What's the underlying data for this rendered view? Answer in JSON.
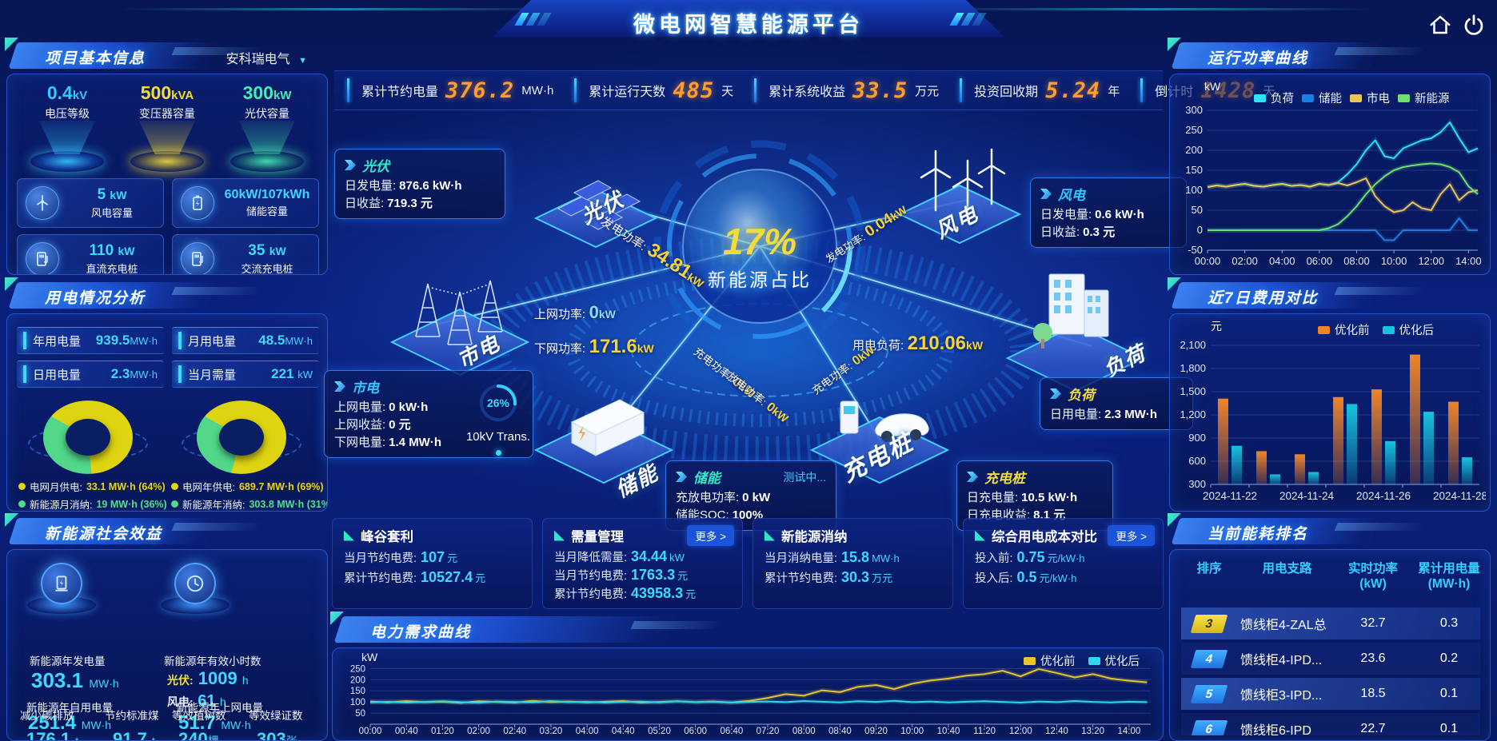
{
  "header": {
    "title": "微电网智慧能源平台"
  },
  "colors": {
    "background": "#0a2180",
    "accent_cyan": "#3fd8ff",
    "accent_yellow": "#f5d33c",
    "number_orange": "#ff9e2e",
    "panel_border": "#2a52c8"
  },
  "topbar": [
    {
      "label": "累计节约电量",
      "value": "376.2",
      "unit": "MW·h"
    },
    {
      "label": "累计运行天数",
      "value": "485",
      "unit": "天"
    },
    {
      "label": "累计系统收益",
      "value": "33.5",
      "unit": "万元"
    },
    {
      "label": "投资回收期",
      "value": "5.24",
      "unit": "年"
    },
    {
      "label": "倒计时",
      "value": "1428",
      "unit": "天"
    }
  ],
  "project": {
    "title": "项目基本信息",
    "company": "安科瑞电气",
    "discs": [
      {
        "value": "0.4",
        "unit": "kV",
        "label": "电压等级"
      },
      {
        "value": "500",
        "unit": "kVA",
        "label": "变压器容量"
      },
      {
        "value": "300",
        "unit": "kW",
        "label": "光伏容量"
      }
    ],
    "cards": [
      {
        "value": "5",
        "unit": "kW",
        "label": "风电容量",
        "icon": "wind-turbine-icon"
      },
      {
        "value": "60kW/107kWh",
        "unit": "",
        "label": "储能容量",
        "icon": "battery-icon"
      },
      {
        "value": "110",
        "unit": "kW",
        "label": "直流充电桩",
        "icon": "dc-charging-pile-icon"
      },
      {
        "value": "35",
        "unit": "kW",
        "label": "交流充电桩",
        "icon": "ac-charging-pile-icon"
      }
    ]
  },
  "usage": {
    "title": "用电情况分析",
    "stats": [
      {
        "label": "年用电量",
        "value": "939.5",
        "unit": "MW·h"
      },
      {
        "label": "月用电量",
        "value": "48.5",
        "unit": "MW·h"
      },
      {
        "label": "日用电量",
        "value": "2.3",
        "unit": "MW·h"
      },
      {
        "label": "当月需量",
        "value": "221",
        "unit": "kW"
      }
    ],
    "month_legend": [
      {
        "label": "电网月供电:",
        "value": "33.1 MW·h (64%)"
      },
      {
        "label": "新能源月消纳:",
        "value": "19 MW·h (36%)"
      }
    ],
    "year_legend": [
      {
        "label": "电网年供电:",
        "value": "689.7 MW·h (69%)"
      },
      {
        "label": "新能源年消纳:",
        "value": "303.8 MW·h (31%)"
      }
    ]
  },
  "benefit": {
    "title": "新能源社会效益",
    "gen": {
      "label": "新能源年发电量",
      "value": "303.1",
      "unit": "MW·h"
    },
    "hours": {
      "label": "新能源年有效小时数",
      "pv_label": "光伏:",
      "pv_value": "1009",
      "pv_unit": "h",
      "wind_label": "风电:",
      "wind_value": "61",
      "wind_unit": "h"
    },
    "self": {
      "label": "新能源年自用电量",
      "value": "251.4",
      "unit": "MW·h"
    },
    "carbon": {
      "label": "减少碳排放",
      "value": "176.1",
      "unit": "t"
    },
    "coal": {
      "label": "节约标准煤",
      "value": "91.7",
      "unit": "t"
    },
    "ongrid": {
      "label": "新能源年上网电量",
      "value": "51.7",
      "unit": "MW·h"
    },
    "trees": {
      "label": "等效植树数",
      "value": "240",
      "unit": "棵"
    },
    "cert": {
      "label": "等效绿证数",
      "value": "303",
      "unit": "张"
    }
  },
  "diagram": {
    "percent": "17%",
    "percent_label": "新能源占比",
    "nodes": {
      "pv": "光伏",
      "wind": "风电",
      "grid": "市电",
      "load": "负荷",
      "storage": "储能",
      "charger": "充电桩"
    },
    "transformer": {
      "percent": "26%",
      "label": "10kV Trans."
    },
    "flows": {
      "pv": {
        "label": "发电功率:",
        "value": "34.81",
        "unit": "kW"
      },
      "wind": {
        "label": "发电功率:",
        "value": "0.04",
        "unit": "kW"
      },
      "up": {
        "label": "上网功率:",
        "value": "0",
        "unit": "kW"
      },
      "down": {
        "label": "下网功率:",
        "value": "171.6",
        "unit": "kW"
      },
      "load": {
        "label": "用电负荷:",
        "value": "210.06",
        "unit": "kW"
      },
      "charge": {
        "label": "充电功率:",
        "value": "0",
        "unit": "kW"
      },
      "discharge": {
        "label": "放电功率:",
        "value": "0",
        "unit": "kW"
      },
      "pile": {
        "label": "充电功率:",
        "value": "0",
        "unit": "kW"
      }
    },
    "cards": {
      "pv": {
        "title": "光伏",
        "rows": [
          {
            "label": "日发电量:",
            "value": "876.6 kW·h"
          },
          {
            "label": "日收益:",
            "value": "719.3 元"
          }
        ]
      },
      "wind": {
        "title": "风电",
        "rows": [
          {
            "label": "日发电量:",
            "value": "0.6 kW·h"
          },
          {
            "label": "日收益:",
            "value": "0.3 元"
          }
        ]
      },
      "grid": {
        "title": "市电",
        "rows": [
          {
            "label": "上网电量:",
            "value": "0 kW·h"
          },
          {
            "label": "上网收益:",
            "value": "0 元"
          },
          {
            "label": "下网电量:",
            "value": "1.4 MW·h"
          }
        ]
      },
      "load": {
        "title": "负荷",
        "rows": [
          {
            "label": "日用电量:",
            "value": "2.3 MW·h"
          }
        ]
      },
      "storage": {
        "title": "储能",
        "badge": "测试中...",
        "rows": [
          {
            "label": "充放电功率:",
            "value": "0 kW"
          },
          {
            "label": "储能SOC:",
            "value": "100%"
          }
        ]
      },
      "charger": {
        "title": "充电桩",
        "rows": [
          {
            "label": "日充电量:",
            "value": "10.5 kW·h"
          },
          {
            "label": "日充电收益:",
            "value": "8.1 元"
          }
        ]
      }
    }
  },
  "bottom_cards": [
    {
      "title": "峰谷套利",
      "rows": [
        {
          "label": "当月节约电费:",
          "value": "107",
          "unit": "元"
        },
        {
          "label": "累计节约电费:",
          "value": "10527.4",
          "unit": "元"
        }
      ]
    },
    {
      "title": "需量管理",
      "more": "更多 >",
      "rows": [
        {
          "label": "当月降低需量:",
          "value": "34.44",
          "unit": "kW"
        },
        {
          "label": "当月节约电费:",
          "value": "1763.3",
          "unit": "元"
        },
        {
          "label": "累计节约电费:",
          "value": "43958.3",
          "unit": "元"
        }
      ]
    },
    {
      "title": "新能源消纳",
      "rows": [
        {
          "label": "当月消纳电量:",
          "value": "15.8",
          "unit": "MW·h"
        },
        {
          "label": "累计节约电费:",
          "value": "30.3",
          "unit": "万元"
        }
      ]
    },
    {
      "title": "综合用电成本对比",
      "more": "更多 >",
      "rows": [
        {
          "label": "投入前:",
          "value": "0.75",
          "unit": "元/kW·h"
        },
        {
          "label": "投入后:",
          "value": "0.5",
          "unit": "元/kW·h"
        }
      ]
    }
  ],
  "power_panel": {
    "title": "运行功率曲线",
    "ylabel": "kW"
  },
  "cost_panel": {
    "title": "近7日费用对比",
    "ylabel": "元"
  },
  "demand_panel": {
    "title": "电力需求曲线",
    "ylabel": "kW"
  },
  "ranking": {
    "title": "当前能耗排名",
    "headers": [
      {
        "line1": "排序",
        "line2": ""
      },
      {
        "line1": "用电支路",
        "line2": ""
      },
      {
        "line1": "实时功率",
        "line2": "(kW)"
      },
      {
        "line1": "累计用电量",
        "line2": "(MW·h)"
      }
    ],
    "rows": [
      {
        "rank": "3",
        "branch": "馈线柜4-ZAL总",
        "power": "32.7",
        "energy": "0.3"
      },
      {
        "rank": "4",
        "branch": "馈线柜4-IPD...",
        "power": "23.6",
        "energy": "0.2"
      },
      {
        "rank": "5",
        "branch": "馈线柜3-IPD...",
        "power": "18.5",
        "energy": "0.1"
      },
      {
        "rank": "6",
        "branch": "馈线柜6-IPD",
        "power": "22.7",
        "energy": "0.1"
      }
    ]
  },
  "chart_data": [
    {
      "id": "run_power",
      "type": "line",
      "title": "运行功率曲线",
      "ylabel": "kW",
      "ylim": [
        -50,
        300
      ],
      "yticks": [
        -50,
        0,
        50,
        100,
        150,
        200,
        250,
        300
      ],
      "xlim": [
        0,
        14.5
      ],
      "xticks": [
        "00:00",
        "02:00",
        "04:00",
        "06:00",
        "08:00",
        "10:00",
        "12:00",
        "14:00"
      ],
      "xtick_vals": [
        0,
        2,
        4,
        6,
        8,
        10,
        12,
        14
      ],
      "legend_position": "top",
      "grid": true,
      "x": [
        0,
        0.5,
        1,
        1.5,
        2,
        2.5,
        3,
        3.5,
        4,
        4.5,
        5,
        5.5,
        6,
        6.5,
        7,
        7.5,
        8,
        8.5,
        9,
        9.5,
        10,
        10.5,
        11,
        11.5,
        12,
        12.5,
        13,
        13.5,
        14,
        14.5
      ],
      "series": [
        {
          "name": "负荷",
          "color": "#2fe3f7",
          "values": [
            108,
            112,
            109,
            113,
            116,
            111,
            109,
            113,
            116,
            111,
            113,
            109,
            116,
            113,
            120,
            140,
            165,
            200,
            225,
            185,
            180,
            205,
            215,
            225,
            230,
            245,
            270,
            230,
            195,
            205
          ]
        },
        {
          "name": "储能",
          "color": "#1f7de0",
          "values": [
            0,
            0,
            0,
            0,
            0,
            0,
            0,
            0,
            0,
            0,
            0,
            0,
            0,
            0,
            0,
            0,
            0,
            0,
            0,
            -25,
            -25,
            0,
            0,
            0,
            0,
            0,
            0,
            30,
            0,
            0
          ]
        },
        {
          "name": "市电",
          "color": "#e8c55a",
          "values": [
            108,
            112,
            109,
            113,
            116,
            111,
            109,
            113,
            116,
            111,
            113,
            109,
            116,
            113,
            118,
            112,
            120,
            130,
            85,
            60,
            45,
            50,
            70,
            55,
            50,
            90,
            115,
            75,
            95,
            100
          ]
        },
        {
          "name": "新能源",
          "color": "#6fe06f",
          "values": [
            0,
            0,
            0,
            0,
            0,
            0,
            0,
            0,
            0,
            0,
            0,
            0,
            0,
            5,
            15,
            35,
            60,
            90,
            115,
            135,
            150,
            158,
            162,
            165,
            167,
            165,
            158,
            145,
            110,
            90
          ]
        }
      ]
    },
    {
      "id": "cost_compare",
      "type": "bar",
      "title": "近7日费用对比",
      "ylabel": "元",
      "ylim": [
        300,
        2100
      ],
      "yticks": [
        300,
        600,
        900,
        1200,
        1500,
        1800,
        2100
      ],
      "ytick_labels": [
        "300",
        "600",
        "900",
        "1,200",
        "1,500",
        "1,800",
        "2,100"
      ],
      "categories": [
        "2024-11-22",
        "2024-11-23",
        "2024-11-24",
        "2024-11-25",
        "2024-11-26",
        "2024-11-27",
        "2024-11-28"
      ],
      "label_indices": [
        0,
        2,
        4,
        6
      ],
      "legend_position": "top-right",
      "grid": true,
      "series": [
        {
          "name": "优化前",
          "color": "#f08428",
          "values": [
            1410,
            730,
            690,
            1430,
            1530,
            1980,
            1370
          ]
        },
        {
          "name": "优化后",
          "color": "#17c4de",
          "values": [
            800,
            430,
            460,
            1340,
            860,
            1240,
            650
          ]
        }
      ]
    },
    {
      "id": "power_demand",
      "type": "line",
      "title": "电力需求曲线",
      "ylabel": "kW",
      "ylim": [
        0,
        280
      ],
      "yticks": [
        50,
        100,
        150,
        200,
        250
      ],
      "xlim": [
        0,
        14.4
      ],
      "xticks": [
        "00:00",
        "00:40",
        "01:20",
        "02:00",
        "02:40",
        "03:20",
        "04:00",
        "04:40",
        "05:20",
        "06:00",
        "06:40",
        "07:20",
        "08:00",
        "08:40",
        "09:20",
        "10:00",
        "10:40",
        "11:20",
        "12:00",
        "12:40",
        "13:20",
        "14:00"
      ],
      "xtick_vals": [
        0,
        0.667,
        1.333,
        2,
        2.667,
        3.333,
        4,
        4.667,
        5.333,
        6,
        6.667,
        7.333,
        8,
        8.667,
        9.333,
        10,
        10.667,
        11.333,
        12,
        12.667,
        13.333,
        14
      ],
      "legend_position": "top-right",
      "grid": true,
      "x": [
        0,
        0.333,
        0.667,
        1,
        1.333,
        1.667,
        2,
        2.333,
        2.667,
        3,
        3.333,
        3.667,
        4,
        4.333,
        4.667,
        5,
        5.333,
        5.667,
        6,
        6.333,
        6.667,
        7,
        7.333,
        7.667,
        8,
        8.333,
        8.667,
        9,
        9.333,
        9.667,
        10,
        10.333,
        10.667,
        11,
        11.333,
        11.667,
        12,
        12.333,
        12.667,
        13,
        13.333,
        13.667,
        14,
        14.333
      ],
      "series": [
        {
          "name": "优化前",
          "color": "#e8c52a",
          "values": [
            102,
            98,
            104,
            99,
            101,
            96,
            103,
            100,
            97,
            105,
            99,
            102,
            98,
            101,
            104,
            97,
            100,
            103,
            99,
            102,
            98,
            105,
            118,
            135,
            128,
            152,
            144,
            168,
            176,
            158,
            182,
            196,
            205,
            218,
            225,
            240,
            215,
            248,
            230,
            210,
            225,
            205,
            195,
            188
          ]
        },
        {
          "name": "优化后",
          "color": "#2fd8e8",
          "values": [
            98,
            101,
            97,
            100,
            103,
            99,
            96,
            102,
            100,
            98,
            104,
            99,
            101,
            97,
            100,
            102,
            98,
            103,
            99,
            101,
            97,
            100,
            102,
            99,
            104,
            101,
            98,
            103,
            100,
            105,
            99,
            102,
            98,
            101,
            103,
            100,
            97,
            102,
            99,
            104,
            100,
            98,
            101,
            99
          ]
        }
      ]
    },
    {
      "id": "month_energy",
      "type": "pie",
      "title": "月供电结构",
      "slices": [
        {
          "label": "电网月供电",
          "value": 64,
          "color": "#ded412"
        },
        {
          "label": "新能源月消纳",
          "value": 36,
          "color": "#52d88a"
        }
      ]
    },
    {
      "id": "year_energy",
      "type": "pie",
      "title": "年供电结构",
      "slices": [
        {
          "label": "电网年供电",
          "value": 69,
          "color": "#ded412"
        },
        {
          "label": "新能源年消纳",
          "value": 31,
          "color": "#52d88a"
        }
      ]
    }
  ]
}
